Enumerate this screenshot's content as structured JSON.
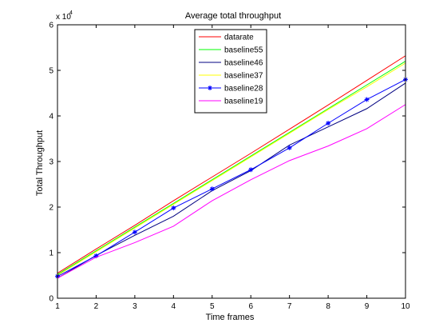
{
  "chart_data": {
    "type": "line",
    "title": "Average total throughput",
    "xlabel": "Time frames",
    "ylabel": "Total Throughput",
    "y_multiplier": "x 10",
    "y_multiplier_exp": "4",
    "xlim": [
      1,
      10
    ],
    "ylim": [
      0,
      6
    ],
    "xticks": [
      "1",
      "2",
      "3",
      "4",
      "5",
      "6",
      "7",
      "8",
      "9",
      "10"
    ],
    "yticks": [
      "0",
      "1",
      "2",
      "3",
      "4",
      "5",
      "6"
    ],
    "grid": false,
    "legend_position": "top-center",
    "x": [
      1,
      2,
      3,
      4,
      5,
      6,
      7,
      8,
      9,
      10
    ],
    "series": [
      {
        "name": "datarate",
        "color": "#ff0000",
        "marker": "none",
        "values": [
          0.55,
          1.08,
          1.6,
          2.14,
          2.66,
          3.18,
          3.71,
          4.24,
          4.78,
          5.32
        ]
      },
      {
        "name": "baseline55",
        "color": "#00ff00",
        "marker": "none",
        "values": [
          0.52,
          1.04,
          1.56,
          2.08,
          2.6,
          3.12,
          3.64,
          4.16,
          4.68,
          5.2
        ]
      },
      {
        "name": "baseline46",
        "color": "#000080",
        "marker": "none",
        "values": [
          0.44,
          0.94,
          1.38,
          1.8,
          2.36,
          2.8,
          3.36,
          3.76,
          4.16,
          4.72
        ]
      },
      {
        "name": "baseline37",
        "color": "#ffff00",
        "marker": "none",
        "values": [
          0.5,
          1.02,
          1.54,
          2.06,
          2.58,
          3.1,
          3.62,
          4.14,
          4.64,
          5.16
        ]
      },
      {
        "name": "baseline28",
        "color": "#0000ff",
        "marker": "star",
        "values": [
          0.48,
          0.93,
          1.45,
          1.98,
          2.4,
          2.82,
          3.3,
          3.84,
          4.36,
          4.8
        ]
      },
      {
        "name": "baseline19",
        "color": "#ff00ff",
        "marker": "none",
        "values": [
          0.44,
          0.9,
          1.22,
          1.58,
          2.14,
          2.6,
          3.02,
          3.34,
          3.72,
          4.25
        ]
      }
    ]
  }
}
